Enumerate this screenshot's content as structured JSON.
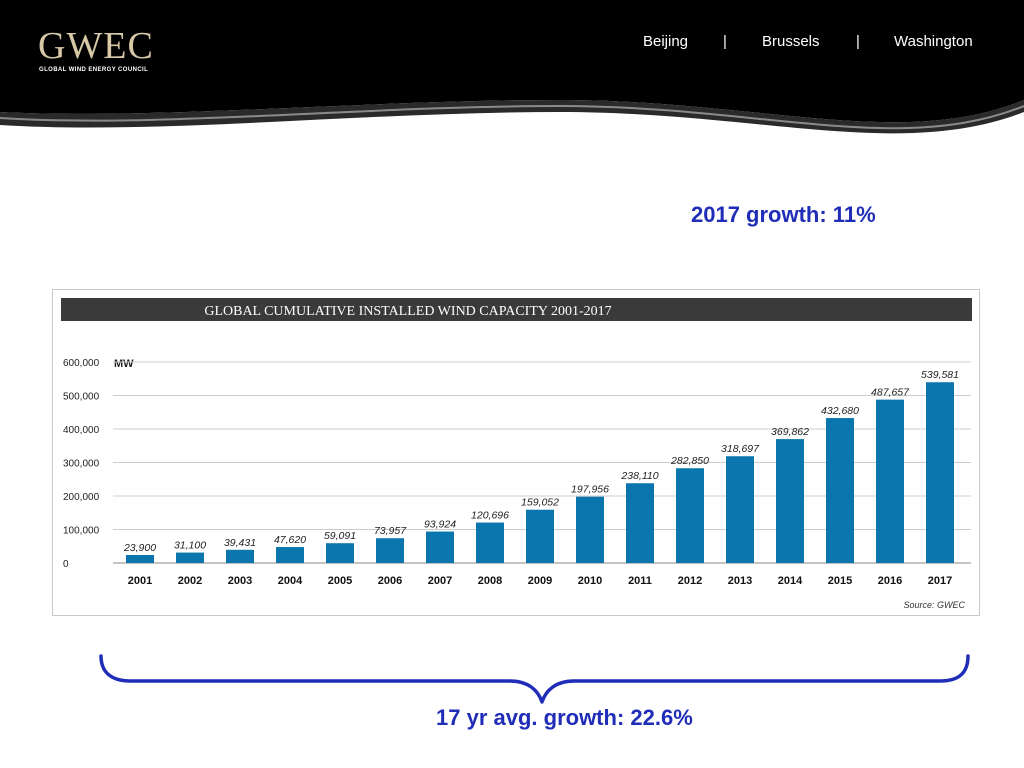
{
  "header": {
    "logo_text": "GWEC",
    "logo_subtitle": "GLOBAL WIND ENERGY COUNCIL",
    "cities": [
      "Beijing",
      "Brussels",
      "Washington"
    ],
    "separator": "|",
    "background_color": "#000000",
    "accent_color": "#d7c9a6"
  },
  "slide": {
    "growth_2017": "2017 growth: 11%",
    "avg_growth": "17 yr avg. growth: 22.6%",
    "text_color": "#1f2db8"
  },
  "chart_data": {
    "type": "bar",
    "title": "GLOBAL CUMULATIVE INSTALLED WIND CAPACITY 2001-2017",
    "unit": "MW",
    "source": "Source: GWEC",
    "categories": [
      "2001",
      "2002",
      "2003",
      "2004",
      "2005",
      "2006",
      "2007",
      "2008",
      "2009",
      "2010",
      "2011",
      "2012",
      "2013",
      "2014",
      "2015",
      "2016",
      "2017"
    ],
    "values": [
      23900,
      31100,
      39431,
      47620,
      59091,
      73957,
      93924,
      120696,
      159052,
      197956,
      238110,
      282850,
      318697,
      369862,
      432680,
      487657,
      539581
    ],
    "value_labels": [
      "23,900",
      "31,100",
      "39,431",
      "47,620",
      "59,091",
      "73,957",
      "93,924",
      "120,696",
      "159,052",
      "197,956",
      "238,110",
      "282,850",
      "318,697",
      "369,862",
      "432,680",
      "487,657",
      "539,581"
    ],
    "y_ticks": [
      0,
      100000,
      200000,
      300000,
      400000,
      500000,
      600000
    ],
    "y_tick_labels": [
      "0",
      "100,000",
      "200,000",
      "300,000",
      "400,000",
      "500,000",
      "600,000"
    ],
    "ylim": [
      0,
      600000
    ],
    "grid": true,
    "bar_color": "#0a76ad",
    "title_bar_color": "#3a3a3a"
  }
}
